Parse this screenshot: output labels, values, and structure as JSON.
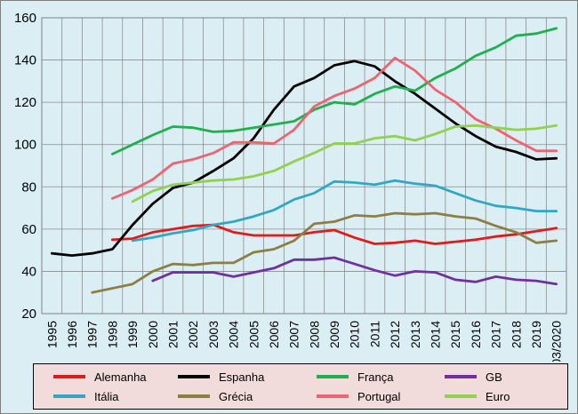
{
  "chart_data": {
    "type": "line",
    "title": "",
    "xlabel": "",
    "ylabel": "",
    "categories": [
      "1995",
      "1996",
      "1997",
      "1998",
      "1999",
      "2000",
      "2001",
      "2002",
      "2003",
      "2004",
      "2005",
      "2006",
      "2007",
      "2008",
      "2009",
      "2010",
      "2011",
      "2012",
      "2013",
      "2014",
      "2015",
      "2016",
      "2017",
      "2018",
      "2019",
      "03/2020"
    ],
    "ylim": [
      20,
      160
    ],
    "yticks": [
      20,
      40,
      60,
      80,
      100,
      120,
      140,
      160
    ],
    "grid": true,
    "legend_position": "bottom",
    "series": [
      {
        "name": "Alemanha",
        "color": "#e31a1c",
        "values": [
          null,
          null,
          null,
          55,
          55.5,
          58.5,
          60,
          61.5,
          62,
          58.5,
          57,
          57,
          57,
          58.5,
          59.5,
          56,
          53,
          53.5,
          54.5,
          53,
          54,
          55,
          56.5,
          57.5,
          59,
          60.5
        ]
      },
      {
        "name": "Espanha",
        "color": "#000000",
        "values": [
          48.5,
          47.5,
          48.5,
          50.5,
          62,
          72,
          79.5,
          82,
          87.5,
          93.5,
          103,
          116.5,
          127.5,
          131.5,
          137.5,
          139.5,
          137,
          130,
          124,
          117,
          110,
          104,
          99,
          96.5,
          93,
          93.5
        ]
      },
      {
        "name": "França",
        "color": "#1eb04d",
        "values": [
          null,
          null,
          null,
          95.5,
          100,
          104.5,
          108.5,
          108,
          106,
          106.5,
          108,
          109.5,
          111,
          116.5,
          120,
          119,
          124,
          127.5,
          125.5,
          131.5,
          136,
          142,
          146,
          151.5,
          152.5,
          155
        ]
      },
      {
        "name": "GB",
        "color": "#7030a0",
        "values": [
          null,
          null,
          null,
          null,
          null,
          35.5,
          39.5,
          39.5,
          39.5,
          37.5,
          39.5,
          41.5,
          45.5,
          45.5,
          46.5,
          43.5,
          40.5,
          38,
          40,
          39.5,
          36,
          35,
          37.5,
          36,
          35.5,
          34
        ]
      },
      {
        "name": "Itália",
        "color": "#31a7c6",
        "values": [
          null,
          null,
          null,
          null,
          54.5,
          56,
          58,
          59.5,
          62,
          63.5,
          66,
          69,
          74,
          77,
          82.5,
          82,
          81,
          83,
          81.5,
          80.5,
          77,
          73.5,
          71,
          70,
          68.5,
          68.5
        ]
      },
      {
        "name": "Grécia",
        "color": "#8c7e45",
        "values": [
          null,
          null,
          30,
          32,
          34,
          40,
          43.5,
          43,
          44,
          44,
          49,
          50.5,
          54.5,
          62.5,
          63.5,
          66.5,
          66,
          67.5,
          67,
          67.5,
          66,
          65,
          61.5,
          58.5,
          53.5,
          54.5
        ]
      },
      {
        "name": "Portugal",
        "color": "#f0626f",
        "values": [
          null,
          null,
          null,
          74.5,
          78.5,
          83.5,
          91,
          93,
          96,
          101,
          101,
          100.5,
          107,
          118,
          123,
          126.5,
          131.5,
          141,
          135,
          126,
          120,
          112,
          107.5,
          102,
          97,
          97
        ]
      },
      {
        "name": "Euro",
        "color": "#92d050",
        "values": [
          null,
          null,
          null,
          null,
          73,
          78,
          81,
          82,
          83,
          83.5,
          85,
          87.5,
          92,
          96,
          100.5,
          100.5,
          103,
          104,
          102,
          105,
          108.5,
          109,
          108,
          107,
          107.5,
          109
        ]
      }
    ]
  }
}
